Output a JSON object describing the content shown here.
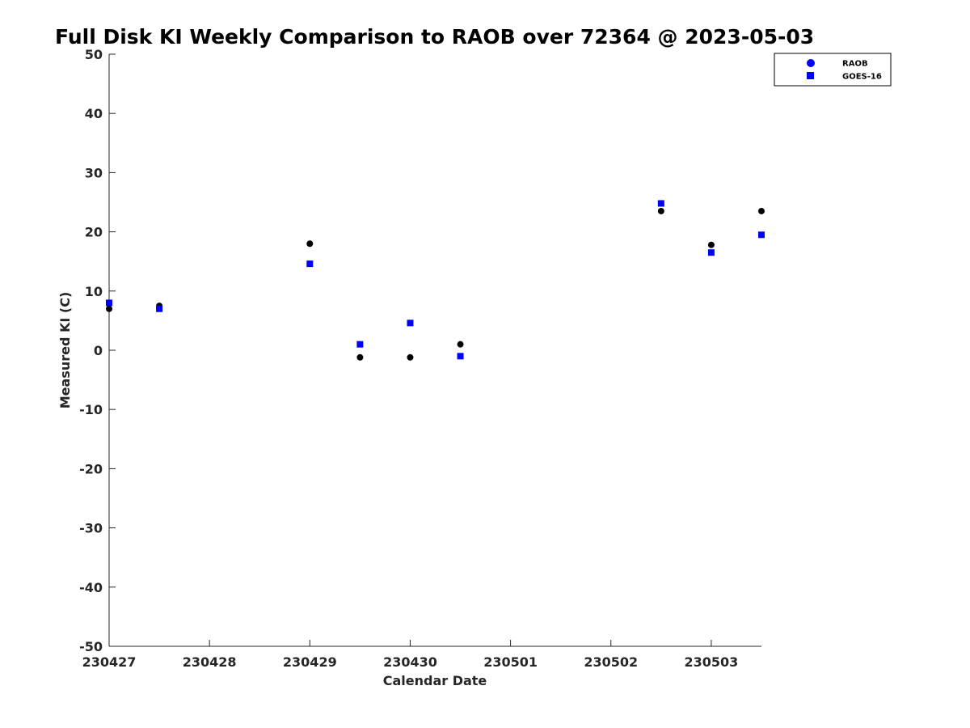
{
  "chart_data": {
    "type": "scatter",
    "title": "Full Disk KI Weekly Comparison to RAOB over 72364 @ 2023-05-03",
    "xlabel": "Calendar Date",
    "ylabel": "Measured KI (C)",
    "xlim": [
      0,
      6.5
    ],
    "ylim": [
      -50,
      50
    ],
    "x_ticks": [
      0,
      1,
      2,
      3,
      4,
      5,
      6
    ],
    "x_tick_labels": [
      "230427",
      "230428",
      "230429",
      "230430",
      "230501",
      "230502",
      "230503"
    ],
    "y_ticks": [
      -50,
      -40,
      -30,
      -20,
      -10,
      0,
      10,
      20,
      30,
      40,
      50
    ],
    "y_tick_labels": [
      "-50",
      "-40",
      "-30",
      "-20",
      "-10",
      "0",
      "10",
      "20",
      "30",
      "40",
      "50"
    ],
    "grid": false,
    "legend_position": "top-right",
    "series": [
      {
        "name": "RAOB",
        "marker": "circle",
        "color": "#000000",
        "legend_color": "#0000ff",
        "x": [
          0,
          0.5,
          2,
          2.5,
          3,
          3.5,
          5.5,
          6,
          6.5
        ],
        "y": [
          7,
          7.5,
          18,
          -1.2,
          -1.2,
          1,
          23.5,
          17.8,
          23.5
        ]
      },
      {
        "name": "GOES-16",
        "marker": "square",
        "color": "#0000ff",
        "legend_color": "#0000ff",
        "x": [
          0,
          0.5,
          2,
          2.5,
          3,
          3.5,
          5.5,
          6,
          6.5
        ],
        "y": [
          8,
          7,
          14.6,
          1,
          4.6,
          -1,
          24.8,
          16.5,
          19.5
        ]
      }
    ]
  }
}
